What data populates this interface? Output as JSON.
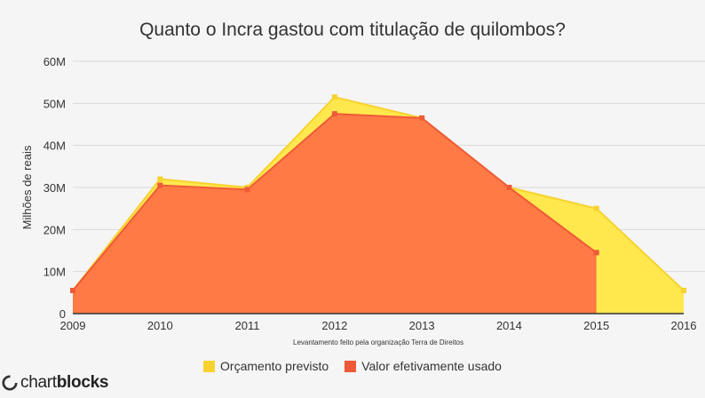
{
  "chart_data": {
    "type": "area",
    "title": "Quanto o Incra gastou com titulação de quilombos?",
    "ylabel": "Milhões de reais",
    "xlabel": "Levantamento feito pela organização Terra de Direitos",
    "categories": [
      "2009",
      "2010",
      "2011",
      "2012",
      "2013",
      "2014",
      "2015",
      "2016"
    ],
    "y_ticks": [
      "0",
      "10M",
      "20M",
      "30M",
      "40M",
      "50M",
      "60M"
    ],
    "ylim": [
      0,
      60
    ],
    "grid": true,
    "legend_position": "bottom",
    "series": [
      {
        "name": "Orçamento previsto",
        "color": "#f7d22f",
        "fill": "#ffe84d",
        "values": [
          5.5,
          32,
          30,
          51.5,
          46.5,
          30,
          25,
          5.5
        ]
      },
      {
        "name": "Valor efetivamente usado",
        "color": "#ee5a38",
        "fill": "#ff7a45",
        "values": [
          5.5,
          30.5,
          29.5,
          47.5,
          46.5,
          30,
          14.5,
          null
        ]
      }
    ]
  },
  "branding": {
    "logo_light": "chart",
    "logo_bold": "blocks",
    "icon": "chartblocks-logo-icon"
  }
}
